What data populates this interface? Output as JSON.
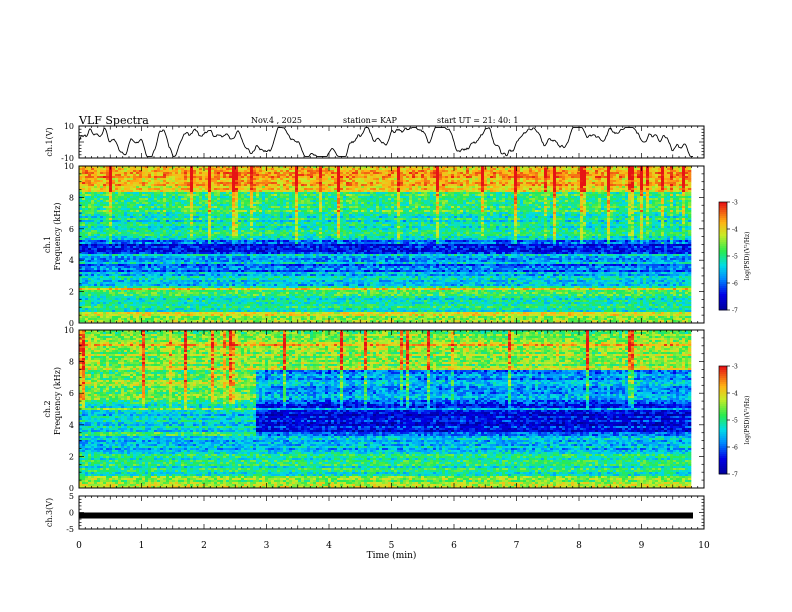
{
  "header": {
    "title": "VLF Spectra",
    "date": "Nov.4 , 2025",
    "station": "station= KAP",
    "start_ut": "start UT = 21: 40: 1"
  },
  "chart_data": [
    {
      "id": "ch1-waveform",
      "type": "line",
      "ylabel": "ch.1(V)",
      "ylim": [
        -10,
        10
      ],
      "y_tick_labels": [
        "10",
        "-10"
      ],
      "xlim": [
        0,
        10
      ],
      "description_values": "noisy waveform around 0 with amplitude about ±5 V"
    },
    {
      "id": "ch1-spectrogram",
      "type": "heatmap",
      "ylabel_top": "ch.1",
      "ylabel": "Frequency (kHz)",
      "ylim": [
        0,
        10
      ],
      "y_tick_labels": [
        "0",
        "2",
        "4",
        "6",
        "8",
        "10"
      ],
      "xlim": [
        0,
        10
      ],
      "colorbar": {
        "label": "log(PSD)(V²/Hz)",
        "range": [
          -7,
          -3
        ],
        "tick_labels": [
          "-3",
          "-4",
          "-5",
          "-6",
          "-7"
        ]
      },
      "bands": [
        {
          "from": 0,
          "to": 0.7,
          "level": -4.3
        },
        {
          "from": 0.7,
          "to": 2.3,
          "level": -5.0
        },
        {
          "from": 2.3,
          "to": 3.0,
          "level": -5.3
        },
        {
          "from": 3.0,
          "to": 3.7,
          "level": -6.0
        },
        {
          "from": 3.7,
          "to": 4.3,
          "level": -5.5
        },
        {
          "from": 4.3,
          "to": 5.3,
          "level": -6.2
        },
        {
          "from": 5.3,
          "to": 7.0,
          "level": -5.2
        },
        {
          "from": 7.0,
          "to": 8.3,
          "level": -4.9
        },
        {
          "from": 8.3,
          "to": 10,
          "level": -4.0
        }
      ]
    },
    {
      "id": "ch2-spectrogram",
      "type": "heatmap",
      "ylabel_top": "ch.2",
      "ylabel": "Frequency (kHz)",
      "ylim": [
        0,
        10
      ],
      "y_tick_labels": [
        "0",
        "2",
        "4",
        "6",
        "8",
        "10"
      ],
      "xlim": [
        0,
        10
      ],
      "colorbar": {
        "label": "log(PSD)(V²/Hz)",
        "range": [
          -7,
          -3
        ],
        "tick_labels": [
          "-3",
          "-4",
          "-5",
          "-6",
          "-7"
        ]
      },
      "bands": [
        {
          "from": 0,
          "to": 0.8,
          "level": -4.4
        },
        {
          "from": 0.8,
          "to": 2.2,
          "level": -5.1
        },
        {
          "from": 2.2,
          "to": 3.5,
          "level": -5.6
        },
        {
          "from": 3.5,
          "to": 5.5,
          "level": -6.4
        },
        {
          "from": 5.5,
          "to": 7.5,
          "level": -5.8
        },
        {
          "from": 7.5,
          "to": 10,
          "level": -4.6
        }
      ],
      "regime_change_min": 2.8
    },
    {
      "id": "ch3-waveform",
      "type": "line",
      "ylabel": "ch.3(V)",
      "ylim": [
        -5,
        5
      ],
      "y_tick_labels": [
        "5",
        "0",
        "-5"
      ],
      "xlim": [
        0,
        10
      ],
      "constant_value": 0,
      "xlabel": "Time (min)",
      "x_tick_labels": [
        "0",
        "1",
        "2",
        "3",
        "4",
        "5",
        "6",
        "7",
        "8",
        "9",
        "10"
      ]
    }
  ],
  "colors": {
    "low": "#0000d8",
    "mid": "#21e85a",
    "high": "#e41e1e",
    "axis": "#000000"
  }
}
